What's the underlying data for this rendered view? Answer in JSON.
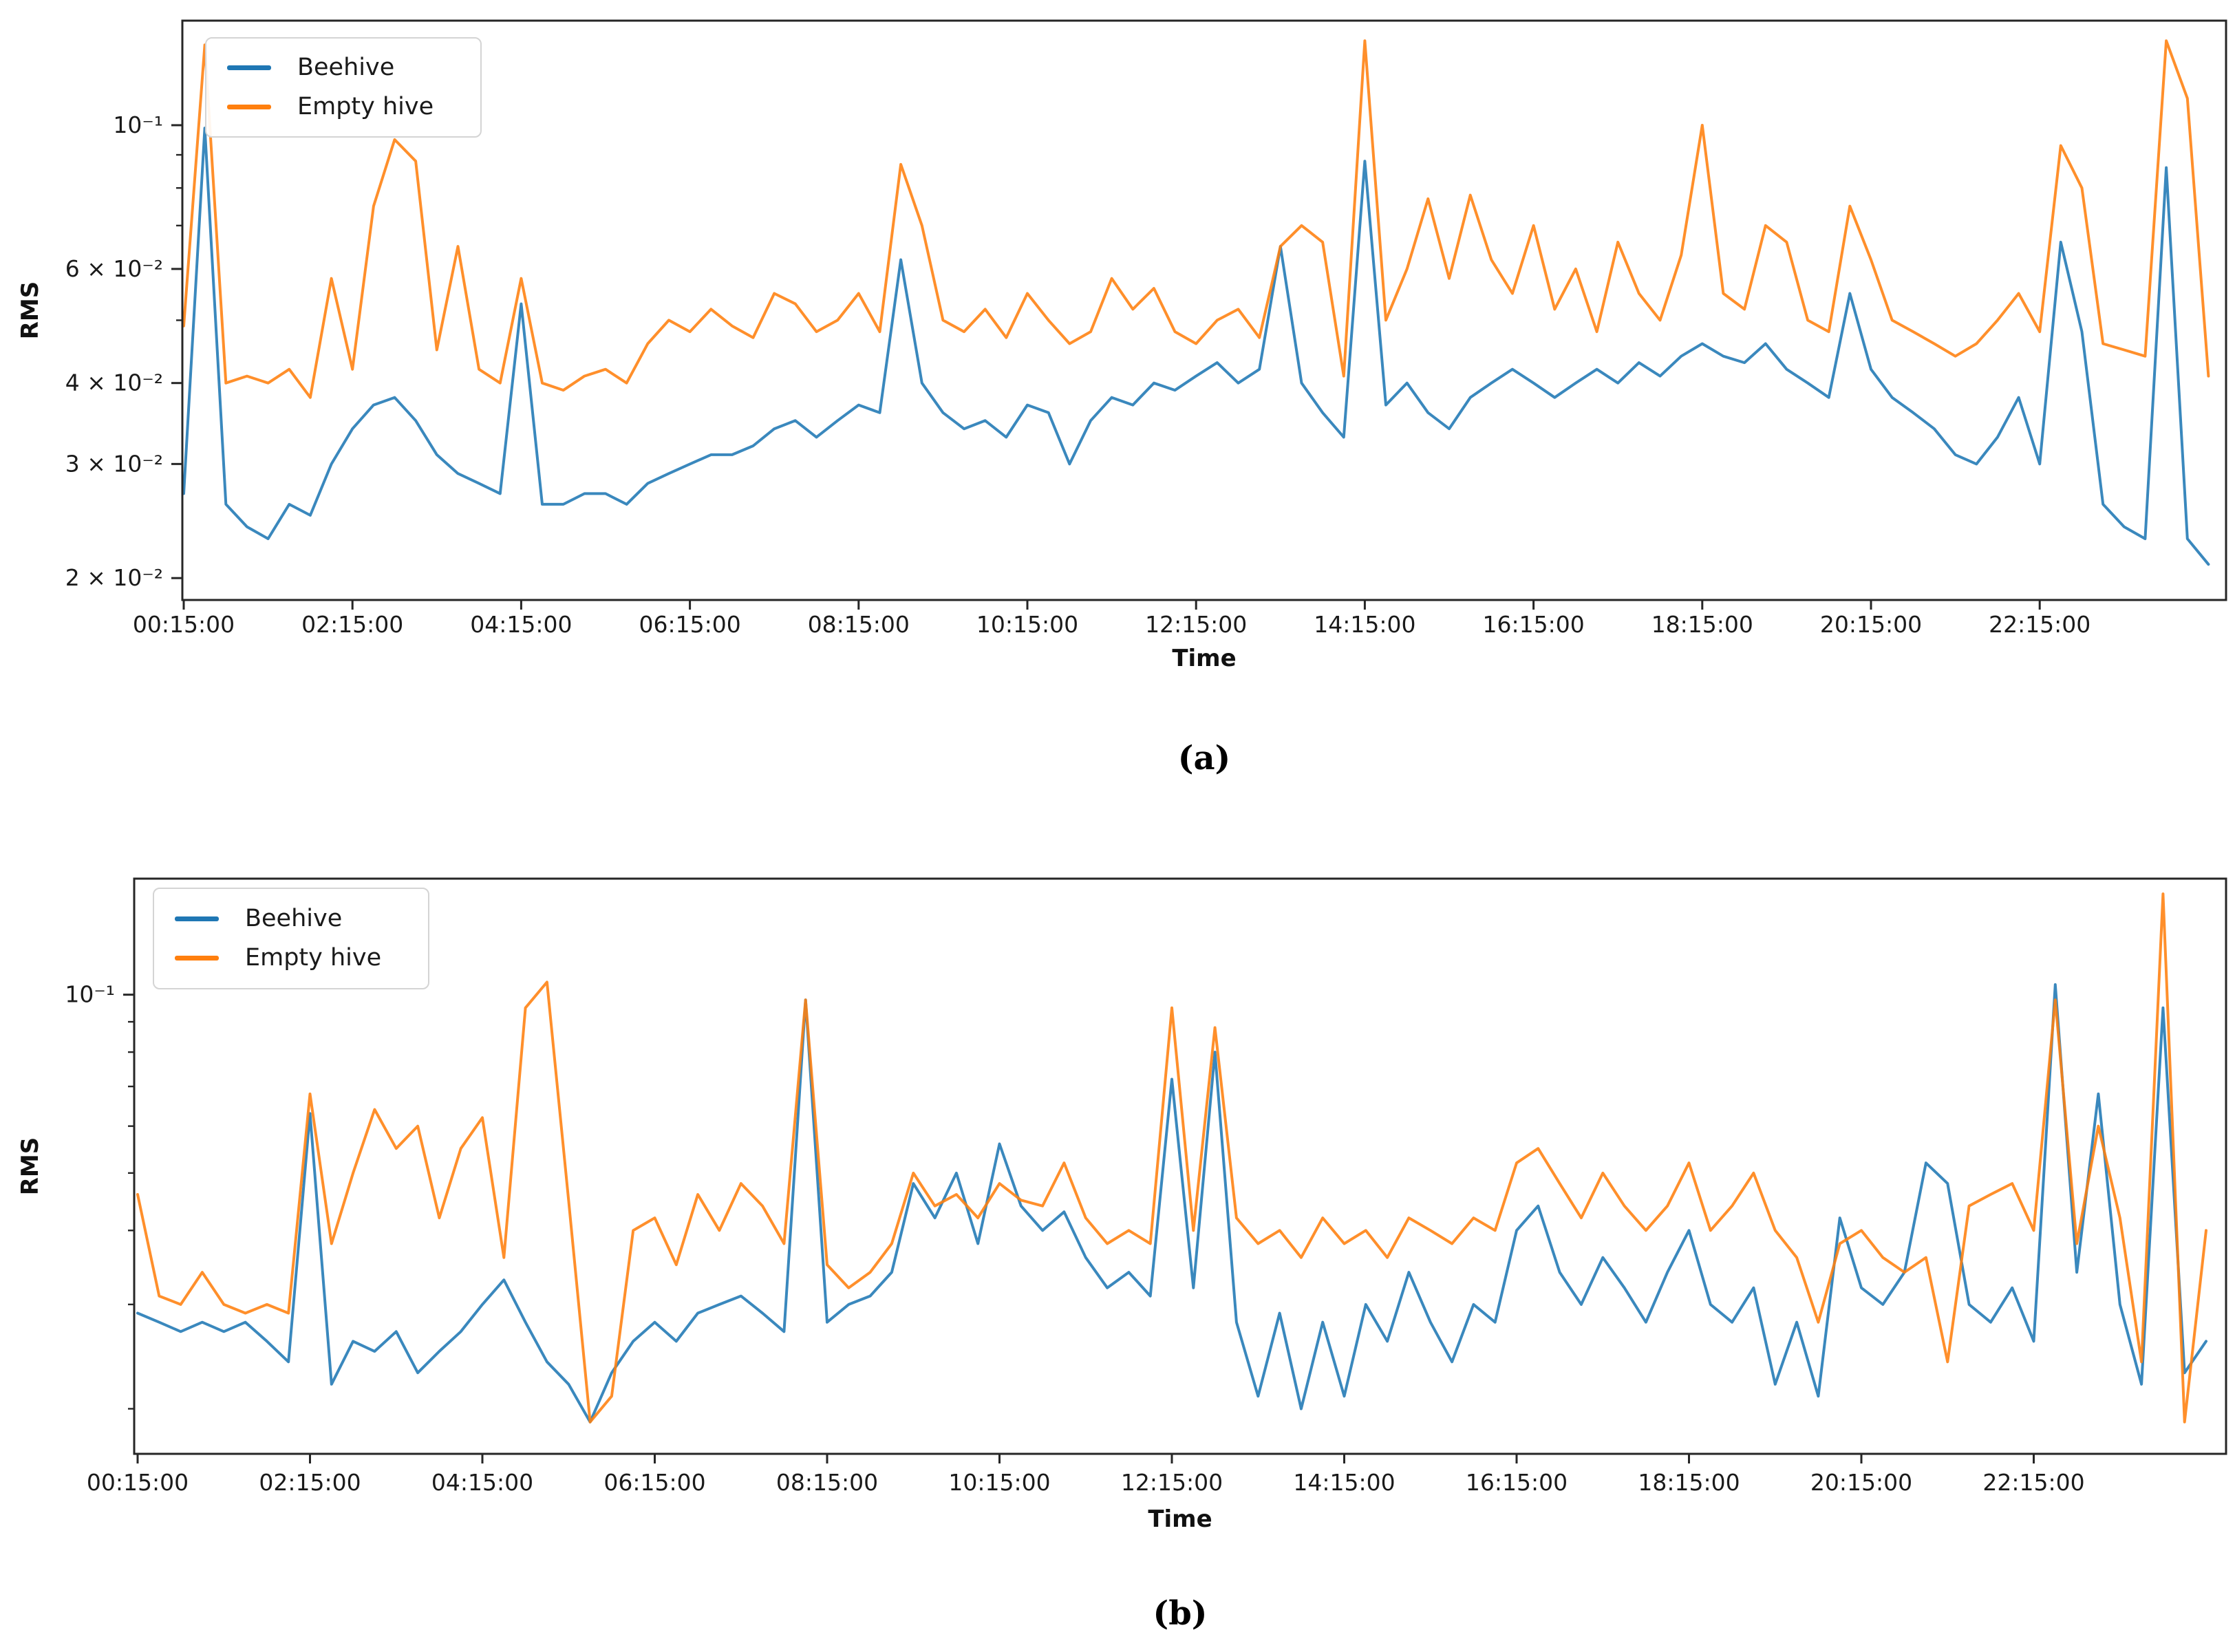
{
  "figure": {
    "background": "#ffffff",
    "axis_color": "#262626",
    "text_color": "#1a1a1a"
  },
  "chart_data": [
    {
      "id": "a",
      "type": "line",
      "caption": "(a)",
      "xlabel": "Time",
      "ylabel": "RMS",
      "y_scale": "log",
      "y_range": [
        0.0185,
        0.145
      ],
      "grid": false,
      "legend_position": "upper-left",
      "legend": [
        "Beehive",
        "Empty hive"
      ],
      "x_axis": {
        "ticks": [
          {
            "minutes": 0,
            "label": "00:15:00"
          },
          {
            "minutes": 120,
            "label": "02:15:00"
          },
          {
            "minutes": 240,
            "label": "04:15:00"
          },
          {
            "minutes": 360,
            "label": "06:15:00"
          },
          {
            "minutes": 480,
            "label": "08:15:00"
          },
          {
            "minutes": 600,
            "label": "10:15:00"
          },
          {
            "minutes": 720,
            "label": "12:15:00"
          },
          {
            "minutes": 840,
            "label": "14:15:00"
          },
          {
            "minutes": 960,
            "label": "16:15:00"
          },
          {
            "minutes": 1080,
            "label": "18:15:00"
          },
          {
            "minutes": 1200,
            "label": "20:15:00"
          },
          {
            "minutes": 1320,
            "label": "22:15:00"
          }
        ]
      },
      "y_axis": {
        "major": [
          {
            "value": 0.1,
            "label": "10⁻¹"
          },
          {
            "value": 0.06,
            "label": "6 × 10⁻²"
          },
          {
            "value": 0.04,
            "label": "4 × 10⁻²"
          },
          {
            "value": 0.03,
            "label": "3 × 10⁻²"
          },
          {
            "value": 0.02,
            "label": "2 × 10⁻²"
          }
        ],
        "minor": [
          0.09,
          0.08,
          0.07,
          0.05
        ]
      },
      "series": [
        {
          "name": "Beehive",
          "color": "#1f77b4",
          "start_label": "00:15:00",
          "step_minutes": 15,
          "values": [
            0.027,
            0.099,
            0.026,
            0.024,
            0.023,
            0.026,
            0.025,
            0.03,
            0.034,
            0.037,
            0.038,
            0.035,
            0.031,
            0.029,
            0.028,
            0.027,
            0.053,
            0.026,
            0.026,
            0.027,
            0.027,
            0.026,
            0.028,
            0.029,
            0.03,
            0.031,
            0.031,
            0.032,
            0.034,
            0.035,
            0.033,
            0.035,
            0.037,
            0.036,
            0.062,
            0.04,
            0.036,
            0.034,
            0.035,
            0.033,
            0.037,
            0.036,
            0.03,
            0.035,
            0.038,
            0.037,
            0.04,
            0.039,
            0.041,
            0.043,
            0.04,
            0.042,
            0.065,
            0.04,
            0.036,
            0.033,
            0.088,
            0.037,
            0.04,
            0.036,
            0.034,
            0.038,
            0.04,
            0.042,
            0.04,
            0.038,
            0.04,
            0.042,
            0.04,
            0.043,
            0.041,
            0.044,
            0.046,
            0.044,
            0.043,
            0.046,
            0.042,
            0.04,
            0.038,
            0.055,
            0.042,
            0.038,
            0.036,
            0.034,
            0.031,
            0.03,
            0.033,
            0.038,
            0.03,
            0.066,
            0.048,
            0.026,
            0.024,
            0.023,
            0.086,
            0.023,
            0.021
          ]
        },
        {
          "name": "Empty hive",
          "color": "#ff7f0e",
          "start_label": "00:15:00",
          "step_minutes": 15,
          "values": [
            0.049,
            0.133,
            0.04,
            0.041,
            0.04,
            0.042,
            0.038,
            0.058,
            0.042,
            0.075,
            0.095,
            0.088,
            0.045,
            0.065,
            0.042,
            0.04,
            0.058,
            0.04,
            0.039,
            0.041,
            0.042,
            0.04,
            0.046,
            0.05,
            0.048,
            0.052,
            0.049,
            0.047,
            0.055,
            0.053,
            0.048,
            0.05,
            0.055,
            0.048,
            0.087,
            0.07,
            0.05,
            0.048,
            0.052,
            0.047,
            0.055,
            0.05,
            0.046,
            0.048,
            0.058,
            0.052,
            0.056,
            0.048,
            0.046,
            0.05,
            0.052,
            0.047,
            0.065,
            0.07,
            0.066,
            0.041,
            0.135,
            0.05,
            0.06,
            0.077,
            0.058,
            0.078,
            0.062,
            0.055,
            0.07,
            0.052,
            0.06,
            0.048,
            0.066,
            0.055,
            0.05,
            0.063,
            0.1,
            0.055,
            0.052,
            0.07,
            0.066,
            0.05,
            0.048,
            0.075,
            0.062,
            0.05,
            0.048,
            0.046,
            0.044,
            0.046,
            0.05,
            0.055,
            0.048,
            0.093,
            0.08,
            0.046,
            0.045,
            0.044,
            0.135,
            0.11,
            0.041
          ]
        }
      ]
    },
    {
      "id": "b",
      "type": "line",
      "caption": "(b)",
      "xlabel": "Time",
      "ylabel": "RMS",
      "y_scale": "log",
      "y_range": [
        0.0168,
        0.157
      ],
      "grid": false,
      "legend_position": "upper-left",
      "legend": [
        "Beehive",
        "Empty hive"
      ],
      "x_axis": {
        "ticks": [
          {
            "minutes": 0,
            "label": "00:15:00"
          },
          {
            "minutes": 120,
            "label": "02:15:00"
          },
          {
            "minutes": 240,
            "label": "04:15:00"
          },
          {
            "minutes": 360,
            "label": "06:15:00"
          },
          {
            "minutes": 480,
            "label": "08:15:00"
          },
          {
            "minutes": 600,
            "label": "10:15:00"
          },
          {
            "minutes": 720,
            "label": "12:15:00"
          },
          {
            "minutes": 840,
            "label": "14:15:00"
          },
          {
            "minutes": 960,
            "label": "16:15:00"
          },
          {
            "minutes": 1080,
            "label": "18:15:00"
          },
          {
            "minutes": 1200,
            "label": "20:15:00"
          },
          {
            "minutes": 1320,
            "label": "22:15:00"
          }
        ]
      },
      "y_axis": {
        "major": [
          {
            "value": 0.1,
            "label": "10⁻¹"
          }
        ],
        "minor": [
          0.09,
          0.08,
          0.07,
          0.06,
          0.05,
          0.04,
          0.03,
          0.02
        ]
      },
      "series": [
        {
          "name": "Beehive",
          "color": "#1f77b4",
          "start_label": "00:15:00",
          "step_minutes": 15,
          "values": [
            0.029,
            0.028,
            0.027,
            0.028,
            0.027,
            0.028,
            0.026,
            0.024,
            0.063,
            0.022,
            0.026,
            0.025,
            0.027,
            0.023,
            0.025,
            0.027,
            0.03,
            0.033,
            0.028,
            0.024,
            0.022,
            0.019,
            0.023,
            0.026,
            0.028,
            0.026,
            0.029,
            0.03,
            0.031,
            0.029,
            0.027,
            0.098,
            0.028,
            0.03,
            0.031,
            0.034,
            0.048,
            0.042,
            0.05,
            0.038,
            0.056,
            0.044,
            0.04,
            0.043,
            0.036,
            0.032,
            0.034,
            0.031,
            0.072,
            0.032,
            0.08,
            0.028,
            0.021,
            0.029,
            0.02,
            0.028,
            0.021,
            0.03,
            0.026,
            0.034,
            0.028,
            0.024,
            0.03,
            0.028,
            0.04,
            0.044,
            0.034,
            0.03,
            0.036,
            0.032,
            0.028,
            0.034,
            0.04,
            0.03,
            0.028,
            0.032,
            0.022,
            0.028,
            0.021,
            0.042,
            0.032,
            0.03,
            0.034,
            0.052,
            0.048,
            0.03,
            0.028,
            0.032,
            0.026,
            0.104,
            0.034,
            0.068,
            0.03,
            0.022,
            0.095,
            0.023,
            0.026
          ]
        },
        {
          "name": "Empty hive",
          "color": "#ff7f0e",
          "start_label": "00:15:00",
          "step_minutes": 15,
          "values": [
            0.046,
            0.031,
            0.03,
            0.034,
            0.03,
            0.029,
            0.03,
            0.029,
            0.068,
            0.038,
            0.05,
            0.064,
            0.055,
            0.06,
            0.042,
            0.055,
            0.062,
            0.036,
            0.095,
            0.105,
            0.045,
            0.019,
            0.021,
            0.04,
            0.042,
            0.035,
            0.046,
            0.04,
            0.048,
            0.044,
            0.038,
            0.098,
            0.035,
            0.032,
            0.034,
            0.038,
            0.05,
            0.044,
            0.046,
            0.042,
            0.048,
            0.045,
            0.044,
            0.052,
            0.042,
            0.038,
            0.04,
            0.038,
            0.095,
            0.04,
            0.088,
            0.042,
            0.038,
            0.04,
            0.036,
            0.042,
            0.038,
            0.04,
            0.036,
            0.042,
            0.04,
            0.038,
            0.042,
            0.04,
            0.052,
            0.055,
            0.048,
            0.042,
            0.05,
            0.044,
            0.04,
            0.044,
            0.052,
            0.04,
            0.044,
            0.05,
            0.04,
            0.036,
            0.028,
            0.038,
            0.04,
            0.036,
            0.034,
            0.036,
            0.024,
            0.044,
            0.046,
            0.048,
            0.04,
            0.098,
            0.038,
            0.06,
            0.042,
            0.024,
            0.148,
            0.019,
            0.04
          ]
        }
      ]
    }
  ]
}
